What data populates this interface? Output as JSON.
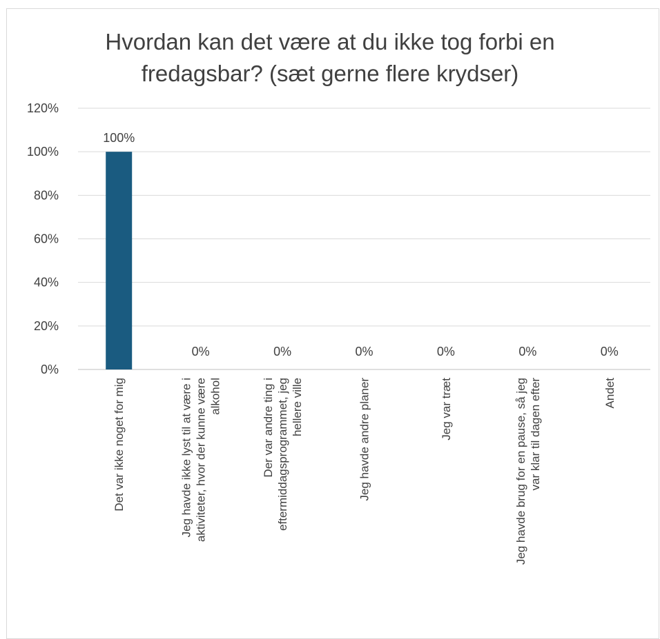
{
  "chart_data": {
    "type": "bar",
    "title": "Hvordan kan det være at du ikke tog forbi en\nfredagsbar? (sæt gerne flere krydser)",
    "xlabel": "",
    "ylabel": "",
    "ylim": [
      0,
      1.2
    ],
    "yticks": [
      "0%",
      "20%",
      "40%",
      "60%",
      "80%",
      "100%",
      "120%"
    ],
    "grid": true,
    "bar_color": "#1a5b80",
    "categories": [
      [
        "Det var ikke noget for mig"
      ],
      [
        "Jeg havde ikke lyst til at være i",
        "aktiviteter, hvor der kunne være",
        "alkohol"
      ],
      [
        "Der var andre ting i",
        "eftermiddagsprogrammet, jeg",
        "hellere ville"
      ],
      [
        "Jeg havde andre planer"
      ],
      [
        "Jeg var træt"
      ],
      [
        "Jeg havde brug for en pause, så jeg",
        "var klar til dagen efter"
      ],
      [
        "Andet"
      ]
    ],
    "values": [
      1.0,
      0,
      0,
      0,
      0,
      0,
      0
    ],
    "data_labels": [
      "100%",
      "0%",
      "0%",
      "0%",
      "0%",
      "0%",
      "0%"
    ]
  }
}
